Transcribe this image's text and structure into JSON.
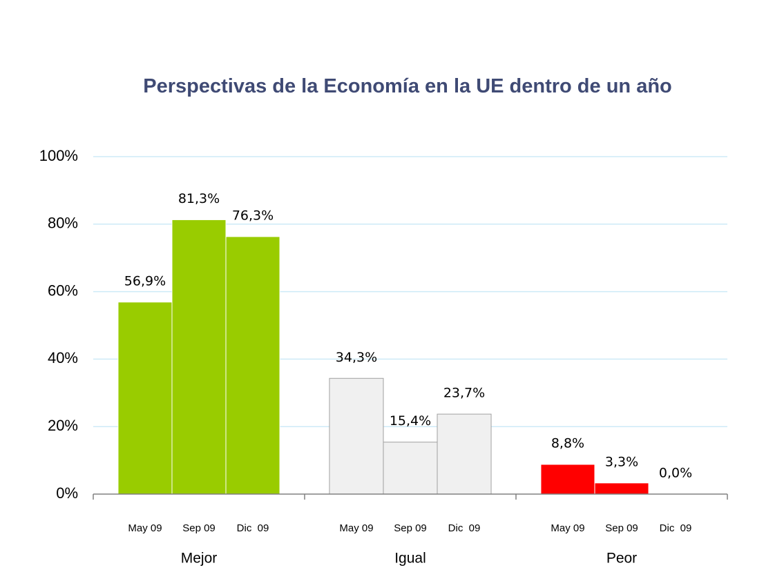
{
  "chart_data": {
    "type": "bar",
    "title": "Perspectivas de la Economía en la UE dentro de un año",
    "categories": [
      "Mejor",
      "Igual",
      "Peor"
    ],
    "colors": [
      "#99cc00",
      "#f0f0f0",
      "#ff0000"
    ],
    "series": [
      {
        "name": "May 09",
        "values": [
          56.9,
          34.3,
          8.8
        ],
        "value_labels": [
          "56,9%",
          "34,3%",
          "8,8%"
        ]
      },
      {
        "name": "Sep 09",
        "values": [
          81.3,
          15.4,
          3.3
        ],
        "value_labels": [
          "81,3%",
          "15,4%",
          "3,3%"
        ]
      },
      {
        "name": "Dic  09",
        "values": [
          76.3,
          23.7,
          0.0
        ],
        "value_labels": [
          "76,3%",
          "23,7%",
          "0,0%"
        ]
      }
    ],
    "ylim": [
      0,
      100
    ],
    "yticks": [
      {
        "value": 0,
        "label": "0%"
      },
      {
        "value": 20,
        "label": "20%"
      },
      {
        "value": 40,
        "label": "40%"
      },
      {
        "value": 60,
        "label": "60%"
      },
      {
        "value": 80,
        "label": "80%"
      },
      {
        "value": 100,
        "label": "100%"
      }
    ],
    "grid": true
  }
}
